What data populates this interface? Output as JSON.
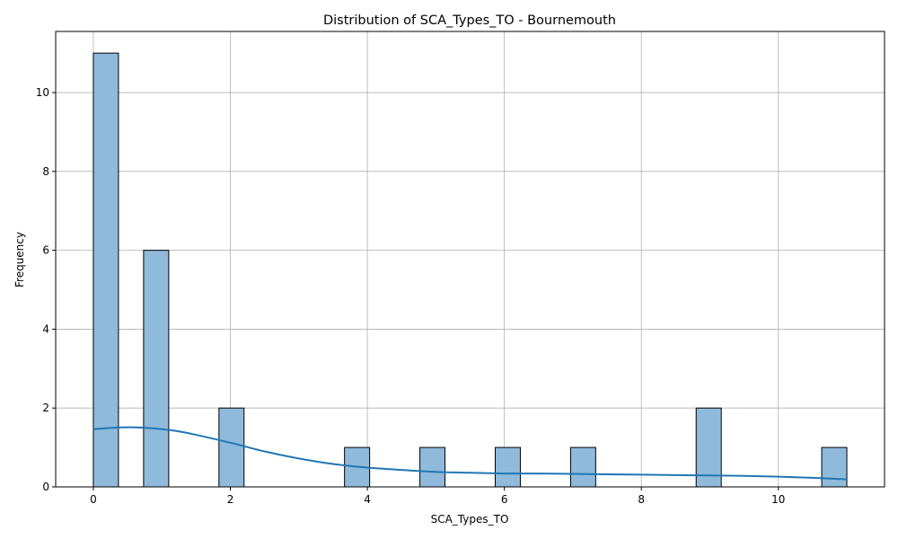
{
  "chart_data": {
    "type": "bar",
    "title": "Distribution of SCA_Types_TO - Bournemouth",
    "xlabel": "SCA_Types_TO",
    "ylabel": "Frequency",
    "xlim": [
      -0.55,
      11.55
    ],
    "ylim": [
      0,
      11.55
    ],
    "x_ticks": [
      0,
      2,
      4,
      6,
      8,
      10
    ],
    "y_ticks": [
      0,
      2,
      4,
      6,
      8,
      10
    ],
    "bin_width": 0.3667,
    "bins": [
      {
        "x0": 0.0,
        "count": 11
      },
      {
        "x0": 0.7333,
        "count": 6
      },
      {
        "x0": 1.8333,
        "count": 2
      },
      {
        "x0": 3.6667,
        "count": 1
      },
      {
        "x0": 4.7667,
        "count": 1
      },
      {
        "x0": 5.8667,
        "count": 1
      },
      {
        "x0": 6.9667,
        "count": 1
      },
      {
        "x0": 8.8,
        "count": 2
      },
      {
        "x0": 10.6333,
        "count": 1
      }
    ],
    "kde": {
      "x": [
        0,
        0.3,
        0.6,
        0.9,
        1.2,
        1.5,
        2.0,
        2.5,
        3.0,
        3.5,
        4.0,
        4.5,
        5.0,
        5.5,
        6.0,
        6.5,
        7.0,
        7.5,
        8.0,
        8.5,
        9.0,
        9.5,
        10.0,
        10.5,
        11.0
      ],
      "y": [
        1.46,
        1.5,
        1.51,
        1.48,
        1.42,
        1.32,
        1.12,
        0.9,
        0.72,
        0.58,
        0.49,
        0.43,
        0.38,
        0.36,
        0.34,
        0.34,
        0.33,
        0.32,
        0.31,
        0.3,
        0.29,
        0.28,
        0.26,
        0.23,
        0.19
      ]
    },
    "grid": true,
    "colors": {
      "bar_fill": "#8fbadb",
      "bar_edge": "#000000",
      "kde_line": "#1f77b4",
      "grid": "#b0b0b0"
    }
  }
}
